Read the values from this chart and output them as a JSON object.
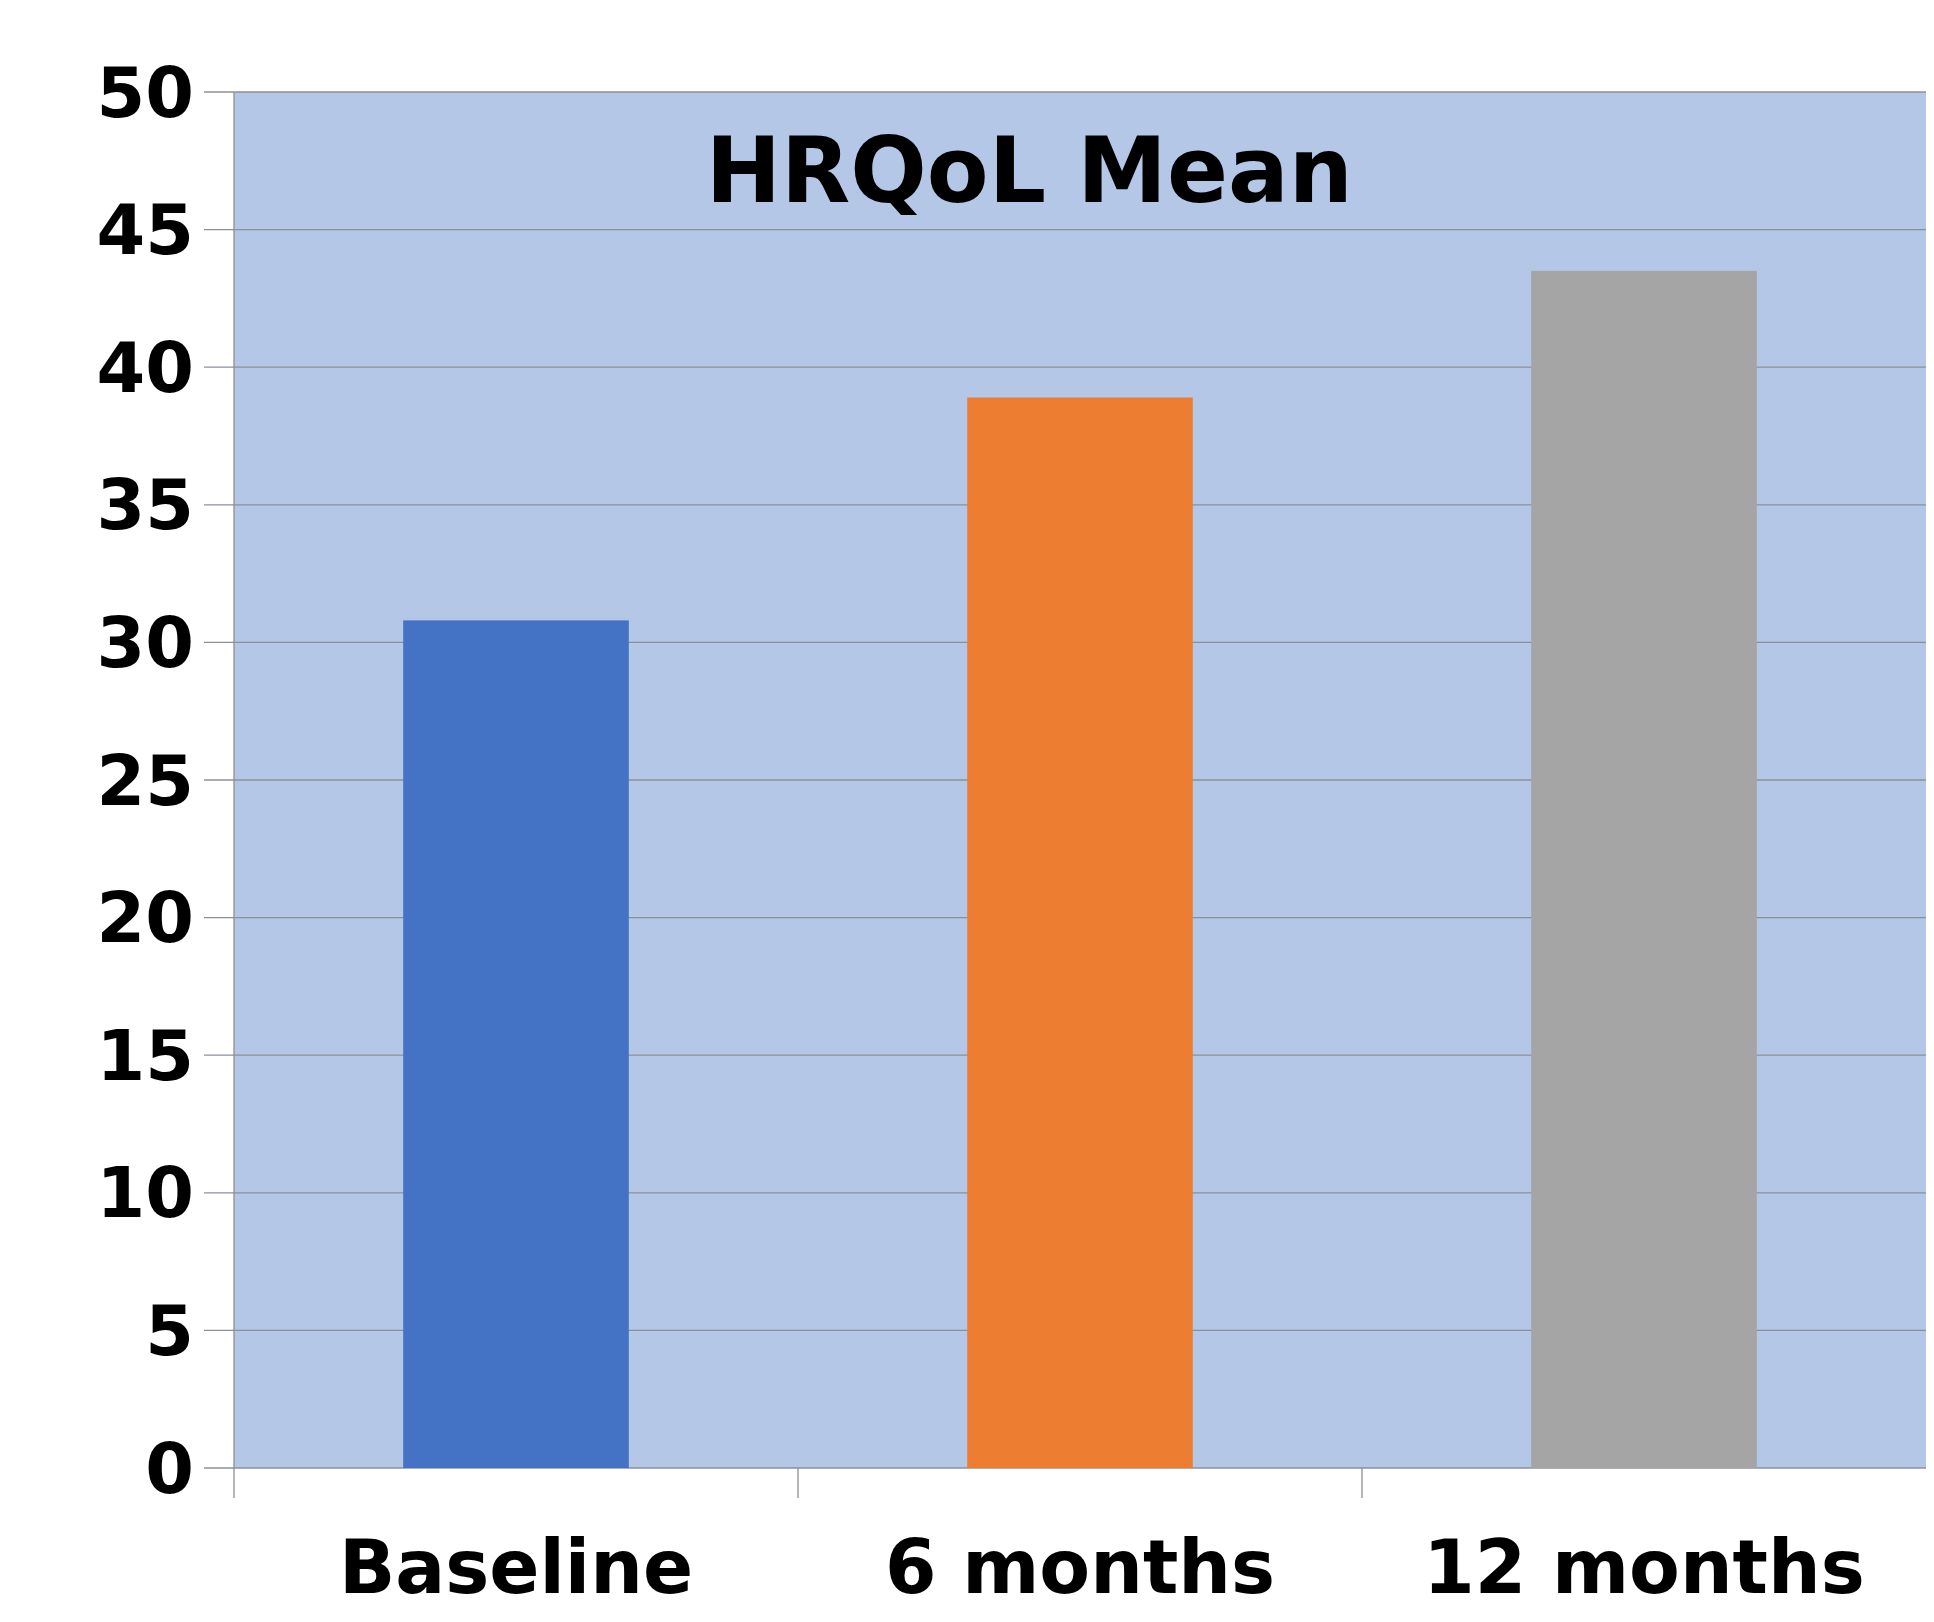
{
  "chart_data": {
    "type": "bar",
    "title": "HRQoL Mean",
    "categories": [
      "Baseline",
      "6 months",
      "12 months"
    ],
    "values": [
      30.8,
      38.9,
      43.5
    ],
    "colors": [
      "#4472c4",
      "#ed7d31",
      "#a5a5a5"
    ],
    "ylim": [
      0,
      50
    ],
    "yticks": [
      0,
      5,
      10,
      15,
      20,
      25,
      30,
      35,
      40,
      45,
      50
    ],
    "grid": "y"
  }
}
